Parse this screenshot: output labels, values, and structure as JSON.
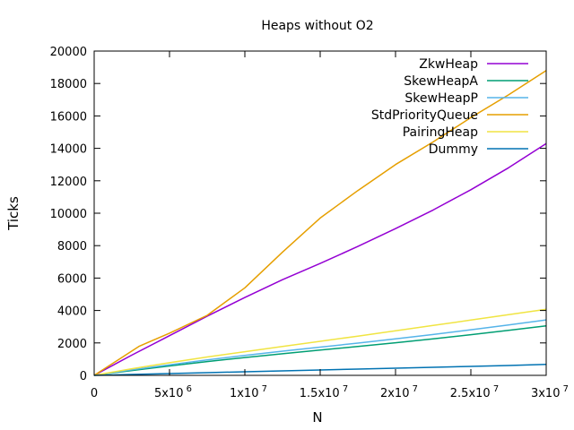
{
  "chart_data": {
    "type": "line",
    "title": "Heaps without O2",
    "xlabel": "N",
    "ylabel": "Ticks",
    "xlim": [
      0,
      30000000
    ],
    "ylim": [
      0,
      20000
    ],
    "xticks": [
      {
        "value": 0,
        "base": "0",
        "exp": ""
      },
      {
        "value": 5000000,
        "base": "5x10",
        "exp": "6"
      },
      {
        "value": 10000000,
        "base": "1x10",
        "exp": "7"
      },
      {
        "value": 15000000,
        "base": "1.5x10",
        "exp": "7"
      },
      {
        "value": 20000000,
        "base": "2x10",
        "exp": "7"
      },
      {
        "value": 25000000,
        "base": "2.5x10",
        "exp": "7"
      },
      {
        "value": 30000000,
        "base": "3x10",
        "exp": "7"
      }
    ],
    "yticks": [
      0,
      2000,
      4000,
      6000,
      8000,
      10000,
      12000,
      14000,
      16000,
      18000,
      20000
    ],
    "grid": false,
    "legend_position": "top-right",
    "series": [
      {
        "name": "ZkwHeap",
        "color": "#9400d3",
        "x": [
          0,
          2500000,
          5000000,
          7500000,
          10000000,
          12500000,
          15000000,
          17500000,
          20000000,
          22500000,
          25000000,
          27500000,
          30000000
        ],
        "y": [
          0,
          1250,
          2450,
          3650,
          4800,
          5900,
          6900,
          7950,
          9050,
          10200,
          11450,
          12800,
          14300
        ]
      },
      {
        "name": "SkewHeapA",
        "color": "#009e73",
        "x": [
          0,
          2500000,
          5000000,
          7500000,
          10000000,
          12500000,
          15000000,
          17500000,
          20000000,
          22500000,
          25000000,
          27500000,
          30000000
        ],
        "y": [
          0,
          300,
          580,
          850,
          1100,
          1330,
          1560,
          1780,
          2010,
          2250,
          2510,
          2780,
          3050
        ]
      },
      {
        "name": "SkewHeapP",
        "color": "#56b4e9",
        "x": [
          0,
          2500000,
          5000000,
          7500000,
          10000000,
          12500000,
          15000000,
          17500000,
          20000000,
          22500000,
          25000000,
          27500000,
          30000000
        ],
        "y": [
          0,
          340,
          650,
          950,
          1230,
          1490,
          1740,
          1990,
          2250,
          2520,
          2810,
          3110,
          3420
        ]
      },
      {
        "name": "StdPriorityQueue",
        "color": "#e69f00",
        "x": [
          0,
          1500000,
          3000000,
          5000000,
          7500000,
          10000000,
          12500000,
          15000000,
          17500000,
          20000000,
          22500000,
          25000000,
          27500000,
          30000000
        ],
        "y": [
          0,
          900,
          1800,
          2600,
          3700,
          5400,
          7600,
          9700,
          11400,
          13000,
          14400,
          15900,
          17300,
          18800
        ]
      },
      {
        "name": "PairingHeap",
        "color": "#f0e442",
        "x": [
          0,
          2500000,
          5000000,
          7500000,
          10000000,
          12500000,
          15000000,
          17500000,
          20000000,
          22500000,
          25000000,
          27500000,
          30000000
        ],
        "y": [
          0,
          410,
          780,
          1130,
          1460,
          1780,
          2100,
          2420,
          2750,
          3080,
          3410,
          3740,
          4080
        ]
      },
      {
        "name": "Dummy",
        "color": "#0072b2",
        "x": [
          0,
          2500000,
          5000000,
          7500000,
          10000000,
          12500000,
          15000000,
          17500000,
          20000000,
          22500000,
          25000000,
          27500000,
          30000000
        ],
        "y": [
          0,
          55,
          110,
          165,
          220,
          275,
          330,
          385,
          440,
          495,
          550,
          610,
          680
        ]
      }
    ]
  }
}
